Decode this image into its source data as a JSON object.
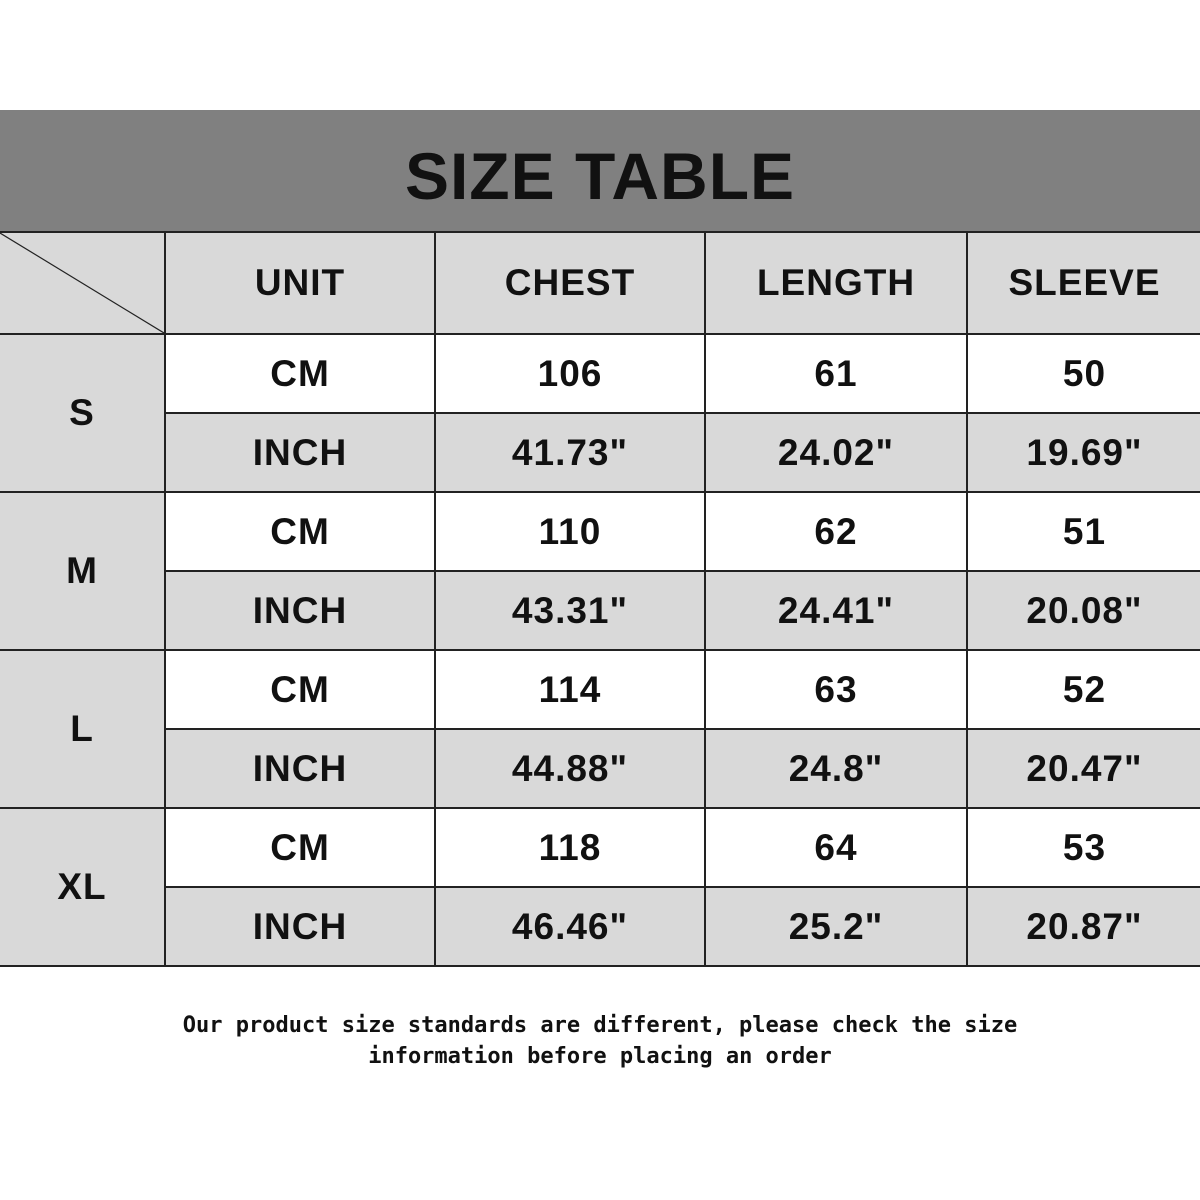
{
  "title": "SIZE TABLE",
  "headers": [
    "UNIT",
    "CHEST",
    "LENGTH",
    "SLEEVE"
  ],
  "sizes": [
    {
      "size": "S",
      "cm": {
        "unit": "CM",
        "chest": "106",
        "length": "61",
        "sleeve": "50"
      },
      "inch": {
        "unit": "INCH",
        "chest": "41.73\"",
        "length": "24.02\"",
        "sleeve": "19.69\""
      }
    },
    {
      "size": "M",
      "cm": {
        "unit": "CM",
        "chest": "110",
        "length": "62",
        "sleeve": "51"
      },
      "inch": {
        "unit": "INCH",
        "chest": "43.31\"",
        "length": "24.41\"",
        "sleeve": "20.08\""
      }
    },
    {
      "size": "L",
      "cm": {
        "unit": "CM",
        "chest": "114",
        "length": "63",
        "sleeve": "52"
      },
      "inch": {
        "unit": "INCH",
        "chest": "44.88\"",
        "length": "24.8\"",
        "sleeve": "20.47\""
      }
    },
    {
      "size": "XL",
      "cm": {
        "unit": "CM",
        "chest": "118",
        "length": "64",
        "sleeve": "53"
      },
      "inch": {
        "unit": "INCH",
        "chest": "46.46\"",
        "length": "25.2\"",
        "sleeve": "20.87\""
      }
    }
  ],
  "note_line1": "Our product size standards are different, please check the size",
  "note_line2": "information before placing an order",
  "colors": {
    "title_band": "#808080",
    "shaded_cell": "#d9d9d9",
    "border": "#222222"
  }
}
